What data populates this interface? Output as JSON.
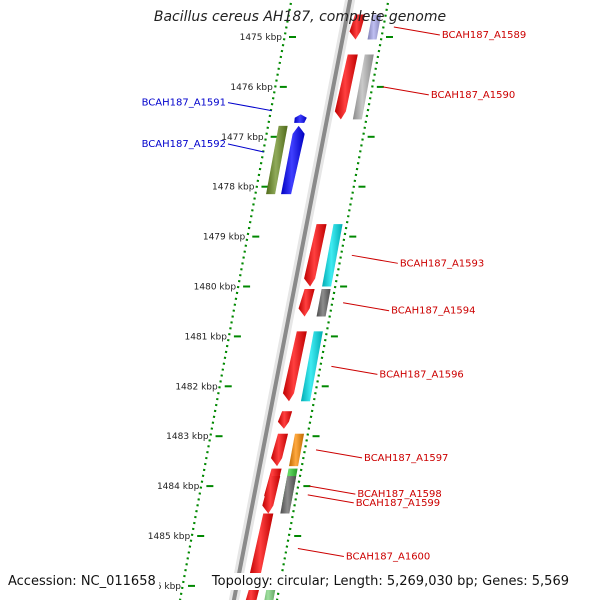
{
  "title": "Bacillus cereus AH187, complete genome",
  "footer": {
    "accession": "Accession: NC_011658",
    "details": "Topology: circular; Length: 5,269,030 bp; Genes: 5,569"
  },
  "colors": {
    "backbone": "#8a8a8a",
    "tick": "#008800",
    "forward_label": "#0000cc",
    "reverse_label": "#cc0000"
  },
  "kbp_ticks": [
    {
      "kbp": 1475,
      "label": "1475 kbp"
    },
    {
      "kbp": 1476,
      "label": "1476 kbp"
    },
    {
      "kbp": 1477,
      "label": "1477 kbp"
    },
    {
      "kbp": 1478,
      "label": "1478 kbp"
    },
    {
      "kbp": 1479,
      "label": "1479 kbp"
    },
    {
      "kbp": 1480,
      "label": "1480 kbp"
    },
    {
      "kbp": 1481,
      "label": "1481 kbp"
    },
    {
      "kbp": 1482,
      "label": "1482 kbp"
    },
    {
      "kbp": 1483,
      "label": "1483 kbp"
    },
    {
      "kbp": 1484,
      "label": "1484 kbp"
    },
    {
      "kbp": 1485,
      "label": "1485 kbp"
    },
    {
      "kbp": 1486,
      "label": "1486 kbp"
    }
  ],
  "genes": [
    {
      "label": "BCAH187_A1589",
      "strand": "reverse",
      "start_kbp": 1474.55,
      "end_kbp": 1475.05,
      "color": "#ff0000",
      "cog_color": "#aaaaee"
    },
    {
      "label": "BCAH187_A1590",
      "strand": "reverse",
      "start_kbp": 1475.35,
      "end_kbp": 1476.65,
      "color": "#ff0000",
      "cog_color": "#b8b8b8"
    },
    {
      "label": "BCAH187_A1591",
      "strand": "forward",
      "start_kbp": 1476.55,
      "end_kbp": 1476.72,
      "color": "#0000ff",
      "cog_color": null
    },
    {
      "label": "BCAH187_A1592",
      "strand": "forward",
      "start_kbp": 1476.78,
      "end_kbp": 1478.15,
      "color": "#0000ff",
      "cog_color": "#6b8e23"
    },
    {
      "label": "BCAH187_A1593",
      "strand": "reverse",
      "start_kbp": 1478.75,
      "end_kbp": 1480.0,
      "color": "#ff0000",
      "cog_color": "#00e5ee"
    },
    {
      "label": "BCAH187_A1594",
      "strand": "reverse",
      "start_kbp": 1480.05,
      "end_kbp": 1480.6,
      "color": "#ff0000",
      "cog_color": "#666666"
    },
    {
      "label": "BCAH187_A1596",
      "strand": "reverse",
      "start_kbp": 1480.9,
      "end_kbp": 1482.3,
      "color": "#ff0000",
      "cog_color": "#00e5ee"
    },
    {
      "label": "",
      "strand": "reverse",
      "start_kbp": 1482.5,
      "end_kbp": 1482.85,
      "color": "#ff0000",
      "cog_color": null
    },
    {
      "label": "BCAH187_A1597",
      "strand": "reverse",
      "start_kbp": 1482.95,
      "end_kbp": 1483.6,
      "color": "#ff0000",
      "cog_color": "#ff8c00"
    },
    {
      "label": "BCAH187_A1598",
      "strand": "reverse",
      "start_kbp": 1483.65,
      "end_kbp": 1484.35,
      "color": "#ff0000",
      "cog_color": "#32cd32"
    },
    {
      "label": "BCAH187_A1599",
      "strand": "reverse",
      "start_kbp": 1483.8,
      "end_kbp": 1484.55,
      "color": "#ff0000",
      "cog_color": "#666666"
    },
    {
      "label": "BCAH187_A1600",
      "strand": "reverse",
      "start_kbp": 1484.55,
      "end_kbp": 1485.95,
      "color": "#ff0000",
      "cog_color": null
    },
    {
      "label": "",
      "strand": "reverse",
      "start_kbp": 1486.0,
      "end_kbp": 1486.6,
      "color": "#ff0000",
      "cog_color": "#7fd67f"
    }
  ]
}
